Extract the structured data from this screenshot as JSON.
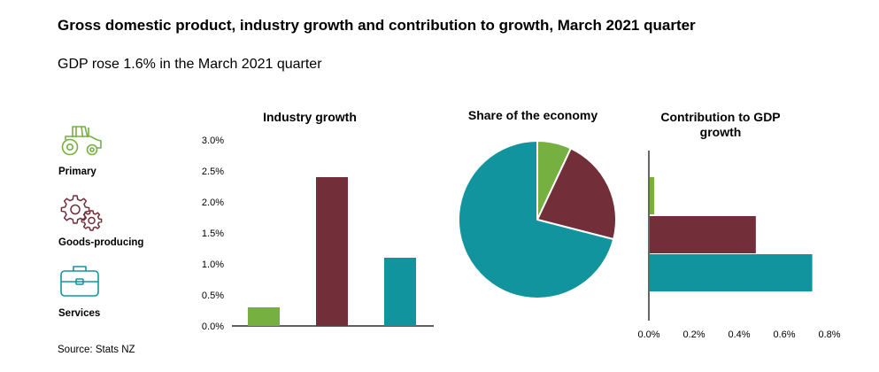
{
  "title": "Gross domestic product, industry growth and contribution to growth, March 2021 quarter",
  "subtitle": "GDP rose 1.6% in the March 2021 quarter",
  "source": "Source: Stats NZ",
  "legend": [
    {
      "label": "Primary",
      "icon": "tractor-icon",
      "color": "#76b041"
    },
    {
      "label": "Goods-producing",
      "icon": "gears-icon",
      "color": "#722e39"
    },
    {
      "label": "Services",
      "icon": "briefcase-icon",
      "color": "#12949e"
    }
  ],
  "chart_data": [
    {
      "type": "bar",
      "title": "Industry growth",
      "categories": [
        "Primary",
        "Goods-producing",
        "Services"
      ],
      "values": [
        0.3,
        2.4,
        1.1
      ],
      "colors": [
        "#76b041",
        "#722e39",
        "#12949e"
      ],
      "ylim": [
        0,
        3.0
      ],
      "yticks": [
        "0.0%",
        "0.5%",
        "1.0%",
        "1.5%",
        "2.0%",
        "2.5%",
        "3.0%"
      ]
    },
    {
      "type": "pie",
      "title": "Share of the economy",
      "categories": [
        "Primary",
        "Goods-producing",
        "Services"
      ],
      "values": [
        7,
        22,
        71
      ],
      "colors": [
        "#76b041",
        "#722e39",
        "#12949e"
      ]
    },
    {
      "type": "bar",
      "orientation": "horizontal",
      "title": "Contribution to GDP growth",
      "categories": [
        "Primary",
        "Goods-producing",
        "Services"
      ],
      "values": [
        0.02,
        0.47,
        0.72
      ],
      "colors": [
        "#76b041",
        "#722e39",
        "#12949e"
      ],
      "xlim": [
        0,
        0.8
      ],
      "xticks": [
        "0.0%",
        "0.2%",
        "0.4%",
        "0.6%",
        "0.8%"
      ]
    }
  ]
}
